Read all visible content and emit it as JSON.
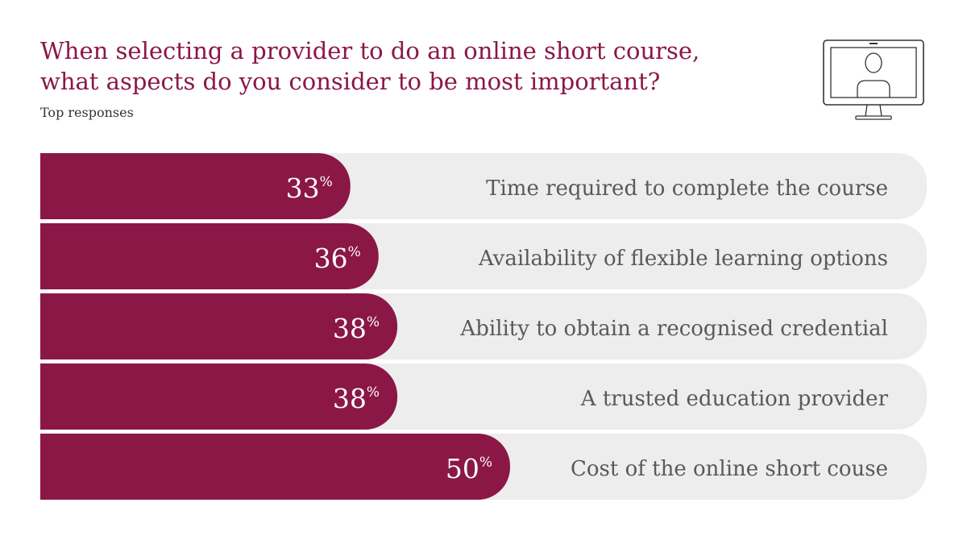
{
  "header": {
    "title_line1": "When selecting a provider to do an online short course,",
    "title_line2": "what aspects do you consider to be most important?",
    "subtitle": "Top responses"
  },
  "icons": {
    "monitor": "monitor-person-icon"
  },
  "colors": {
    "accent": "#8b1747",
    "track": "#ededee",
    "label": "#595959",
    "value_text": "#ffffff"
  },
  "chart_data": {
    "type": "bar",
    "orientation": "horizontal",
    "unit": "%",
    "categories": [
      "Time required to complete the course",
      "Availability of flexible learning options",
      "Ability to obtain a recognised credential",
      "A trusted education provider",
      "Cost of the online short couse"
    ],
    "values": [
      33,
      36,
      38,
      38,
      50
    ],
    "value_labels": [
      "33",
      "36",
      "38",
      "38",
      "50"
    ],
    "xlim": [
      0,
      100
    ],
    "grid": false,
    "legend": "none"
  }
}
